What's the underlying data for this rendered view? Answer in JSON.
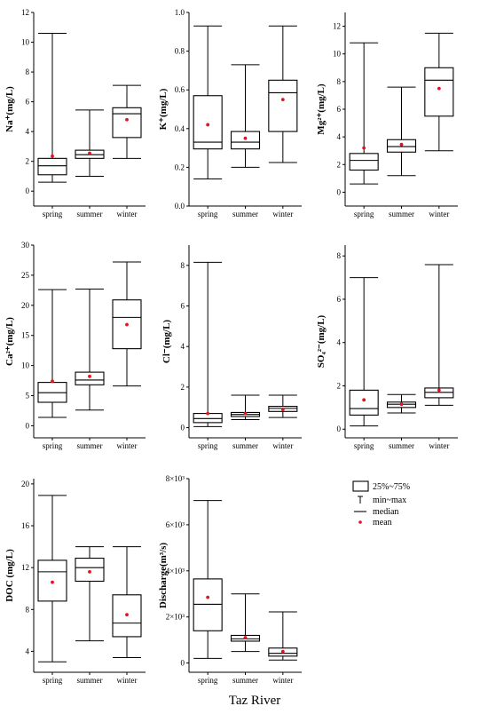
{
  "footer_title": "Taz River",
  "legend": {
    "box_label": "25%~75%",
    "whisker_label": "min~max",
    "median_label": "median",
    "mean_label": "mean"
  },
  "colors": {
    "mean": "#e8101e",
    "box_fill": "#ffffff",
    "stroke": "#000000"
  },
  "chart_data": [
    {
      "type": "box",
      "ylabel": "Na⁺(mg/L)",
      "categories": [
        "spring",
        "summer",
        "winter"
      ],
      "ylim": [
        -1,
        12
      ],
      "yticks": [
        0,
        2,
        4,
        6,
        8,
        10,
        12
      ],
      "series": [
        {
          "name": "spring",
          "min": 0.6,
          "q1": 1.1,
          "median": 1.7,
          "q3": 2.2,
          "max": 10.6,
          "mean": 2.35
        },
        {
          "name": "summer",
          "min": 1.0,
          "q1": 2.2,
          "median": 2.45,
          "q3": 2.75,
          "max": 5.45,
          "mean": 2.55
        },
        {
          "name": "winter",
          "min": 2.2,
          "q1": 3.6,
          "median": 5.2,
          "q3": 5.6,
          "max": 7.1,
          "mean": 4.8
        }
      ]
    },
    {
      "type": "box",
      "ylabel": "K⁺(mg/L)",
      "categories": [
        "spring",
        "summer",
        "winter"
      ],
      "ylim": [
        0,
        1.0
      ],
      "yticks": [
        0.0,
        0.2,
        0.4,
        0.6,
        0.8,
        1.0
      ],
      "tick_format": "1dec",
      "series": [
        {
          "name": "spring",
          "min": 0.14,
          "q1": 0.295,
          "median": 0.33,
          "q3": 0.57,
          "max": 0.93,
          "mean": 0.42
        },
        {
          "name": "summer",
          "min": 0.2,
          "q1": 0.295,
          "median": 0.33,
          "q3": 0.385,
          "max": 0.73,
          "mean": 0.35
        },
        {
          "name": "winter",
          "min": 0.225,
          "q1": 0.385,
          "median": 0.585,
          "q3": 0.65,
          "max": 0.93,
          "mean": 0.55
        }
      ]
    },
    {
      "type": "box",
      "ylabel": "Mg²⁺(mg/L)",
      "categories": [
        "spring",
        "summer",
        "winter"
      ],
      "ylim": [
        -1,
        13
      ],
      "yticks": [
        0,
        2,
        4,
        6,
        8,
        10,
        12
      ],
      "series": [
        {
          "name": "spring",
          "min": 0.6,
          "q1": 1.6,
          "median": 2.3,
          "q3": 2.8,
          "max": 10.8,
          "mean": 3.2
        },
        {
          "name": "summer",
          "min": 1.2,
          "q1": 2.9,
          "median": 3.3,
          "q3": 3.8,
          "max": 7.6,
          "mean": 3.45
        },
        {
          "name": "winter",
          "min": 3.0,
          "q1": 5.5,
          "median": 8.1,
          "q3": 9.0,
          "max": 11.5,
          "mean": 7.5
        }
      ]
    },
    {
      "type": "box",
      "ylabel": "Ca²⁺(mg/L)",
      "categories": [
        "spring",
        "summer",
        "winter"
      ],
      "ylim": [
        -2,
        30
      ],
      "yticks": [
        0,
        5,
        10,
        15,
        20,
        25,
        30
      ],
      "series": [
        {
          "name": "spring",
          "min": 1.4,
          "q1": 3.9,
          "median": 5.5,
          "q3": 7.2,
          "max": 22.6,
          "mean": 7.4
        },
        {
          "name": "summer",
          "min": 2.6,
          "q1": 6.8,
          "median": 7.6,
          "q3": 8.9,
          "max": 22.7,
          "mean": 8.2
        },
        {
          "name": "winter",
          "min": 6.6,
          "q1": 12.8,
          "median": 18.0,
          "q3": 20.9,
          "max": 27.2,
          "mean": 16.8
        }
      ]
    },
    {
      "type": "box",
      "ylabel": "Cl⁻(mg/L)",
      "categories": [
        "spring",
        "summer",
        "winter"
      ],
      "ylim": [
        -0.5,
        9
      ],
      "yticks": [
        0,
        2,
        4,
        6,
        8
      ],
      "series": [
        {
          "name": "spring",
          "min": 0.05,
          "q1": 0.25,
          "median": 0.45,
          "q3": 0.7,
          "max": 8.15,
          "mean": 0.7
        },
        {
          "name": "summer",
          "min": 0.4,
          "q1": 0.55,
          "median": 0.65,
          "q3": 0.75,
          "max": 1.6,
          "mean": 0.7
        },
        {
          "name": "winter",
          "min": 0.5,
          "q1": 0.8,
          "median": 0.95,
          "q3": 1.05,
          "max": 1.6,
          "mean": 0.9
        }
      ]
    },
    {
      "type": "box",
      "ylabel": "SO₄²⁻(mg/L)",
      "categories": [
        "spring",
        "summer",
        "winter"
      ],
      "ylim": [
        -0.4,
        8.5
      ],
      "yticks": [
        0,
        2,
        4,
        6,
        8
      ],
      "series": [
        {
          "name": "spring",
          "min": 0.15,
          "q1": 0.65,
          "median": 0.95,
          "q3": 1.8,
          "max": 7.0,
          "mean": 1.35
        },
        {
          "name": "summer",
          "min": 0.75,
          "q1": 1.0,
          "median": 1.15,
          "q3": 1.25,
          "max": 1.6,
          "mean": 1.15
        },
        {
          "name": "winter",
          "min": 1.1,
          "q1": 1.45,
          "median": 1.7,
          "q3": 1.9,
          "max": 7.6,
          "mean": 1.8
        }
      ]
    },
    {
      "type": "box",
      "ylabel": "DOC (mg/L)",
      "categories": [
        "spring",
        "summer",
        "winter"
      ],
      "ylim": [
        2,
        20.5
      ],
      "yticks": [
        4,
        8,
        12,
        16,
        20
      ],
      "series": [
        {
          "name": "spring",
          "min": 3.0,
          "q1": 8.8,
          "median": 11.6,
          "q3": 12.7,
          "max": 18.9,
          "mean": 10.6
        },
        {
          "name": "summer",
          "min": 5.0,
          "q1": 10.7,
          "median": 12.0,
          "q3": 12.9,
          "max": 14.0,
          "mean": 11.6
        },
        {
          "name": "winter",
          "min": 3.4,
          "q1": 5.4,
          "median": 6.7,
          "q3": 9.4,
          "max": 14.0,
          "mean": 7.5
        }
      ]
    },
    {
      "type": "box",
      "ylabel": "Discharge(m³/s)",
      "categories": [
        "spring",
        "summer",
        "winter"
      ],
      "ylim": [
        -400,
        8000
      ],
      "yticks": [
        0,
        2000,
        4000,
        6000,
        8000
      ],
      "tick_format": "sci",
      "tick_text": [
        "0",
        "2×10³",
        "4×10³",
        "6×10³",
        "8×10³"
      ],
      "series": [
        {
          "name": "spring",
          "min": 200,
          "q1": 1400,
          "median": 2550,
          "q3": 3650,
          "max": 7050,
          "mean": 2850
        },
        {
          "name": "summer",
          "min": 500,
          "q1": 950,
          "median": 1050,
          "q3": 1200,
          "max": 3000,
          "mean": 1100
        },
        {
          "name": "winter",
          "min": 130,
          "q1": 300,
          "median": 420,
          "q3": 650,
          "max": 2220,
          "mean": 500
        }
      ]
    }
  ]
}
